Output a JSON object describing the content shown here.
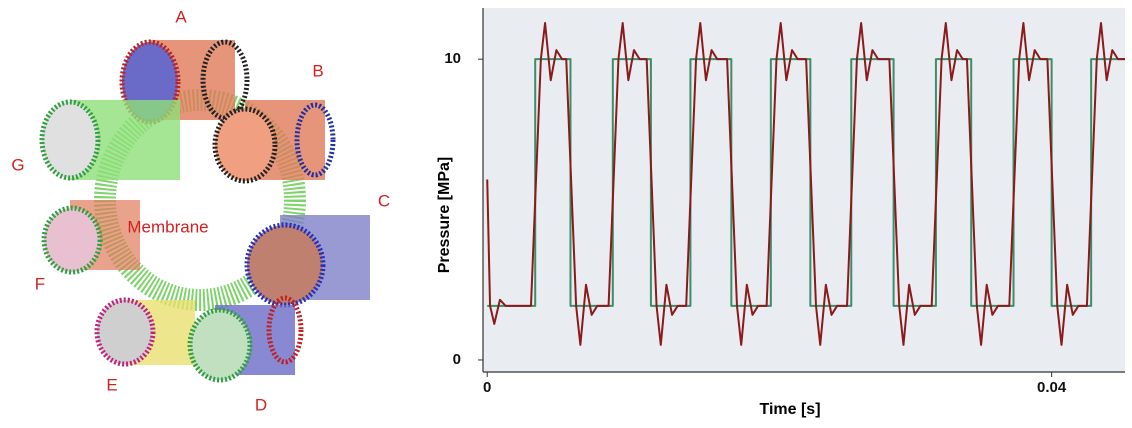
{
  "diagram": {
    "labels": [
      "A",
      "B",
      "C",
      "D",
      "E",
      "F",
      "G"
    ],
    "center_label": "Membrane"
  },
  "chart_data": {
    "type": "line",
    "x_label": "Time [s]",
    "y_label": "Pressure [MPa]",
    "xlim": [
      -0.0003,
      0.0452
    ],
    "xticks": [
      0,
      0.04
    ],
    "ylim": [
      -0.4,
      11.7
    ],
    "yticks": [
      0,
      10
    ],
    "series": [
      {
        "color": "#3a8f6a",
        "x": [
          0,
          0.0034,
          0.0034,
          0.0059,
          0.0059,
          0.0089,
          0.0089,
          0.0116,
          0.0116,
          0.0144,
          0.0144,
          0.0173,
          0.0173,
          0.0201,
          0.0201,
          0.0229,
          0.0229,
          0.0258,
          0.0258,
          0.0288,
          0.0288,
          0.0318,
          0.0318,
          0.0343,
          0.0343,
          0.0373,
          0.0373,
          0.04,
          0.04,
          0.0428,
          0.0428,
          0.0452
        ],
        "values": [
          1.8,
          1.8,
          10,
          10,
          1.8,
          1.8,
          10,
          10,
          1.8,
          1.8,
          10,
          10,
          1.8,
          1.8,
          10,
          10,
          1.8,
          1.8,
          10,
          10,
          1.8,
          1.8,
          10,
          10,
          1.8,
          1.8,
          10,
          10,
          1.8,
          1.8,
          10,
          10
        ]
      },
      {
        "color": "#8b1a1a",
        "x": [
          0,
          0.0002,
          0.0005,
          0.0009,
          0.0013,
          0.0031,
          0.0038,
          0.0041,
          0.0045,
          0.0049,
          0.0053,
          0.0056,
          0.0063,
          0.0066,
          0.007,
          0.0074,
          0.0078,
          0.0086,
          0.0093,
          0.0096,
          0.01,
          0.0104,
          0.0108,
          0.0113,
          0.012,
          0.0123,
          0.0127,
          0.0131,
          0.0135,
          0.0141,
          0.0148,
          0.0151,
          0.0155,
          0.0159,
          0.0163,
          0.017,
          0.0177,
          0.018,
          0.0184,
          0.0188,
          0.0192,
          0.0198,
          0.0205,
          0.0208,
          0.0212,
          0.0216,
          0.022,
          0.0226,
          0.0233,
          0.0236,
          0.024,
          0.0244,
          0.0248,
          0.0255,
          0.0262,
          0.0265,
          0.0269,
          0.0273,
          0.0277,
          0.0285,
          0.0292,
          0.0295,
          0.0299,
          0.0303,
          0.0307,
          0.0315,
          0.0322,
          0.0325,
          0.0329,
          0.0333,
          0.0337,
          0.034,
          0.0347,
          0.035,
          0.0354,
          0.0358,
          0.0362,
          0.037,
          0.0377,
          0.038,
          0.0384,
          0.0388,
          0.0392,
          0.0397,
          0.0404,
          0.0407,
          0.0411,
          0.0415,
          0.0419,
          0.0425,
          0.0432,
          0.0435,
          0.0439,
          0.0443,
          0.0447,
          0.0452
        ],
        "values": [
          6,
          1.8,
          1.2,
          2.0,
          1.8,
          1.8,
          10,
          11.2,
          9.3,
          10.3,
          10,
          10,
          1.8,
          0.5,
          2.5,
          1.5,
          1.8,
          1.8,
          10,
          11.2,
          9.3,
          10.3,
          10,
          10,
          1.8,
          0.5,
          2.5,
          1.5,
          1.8,
          1.8,
          10,
          11.2,
          9.3,
          10.3,
          10,
          10,
          1.8,
          0.5,
          2.5,
          1.5,
          1.8,
          1.8,
          10,
          11.2,
          9.3,
          10.3,
          10,
          10,
          1.8,
          0.5,
          2.5,
          1.5,
          1.8,
          1.8,
          10,
          11.2,
          9.3,
          10.3,
          10,
          10,
          1.8,
          0.5,
          2.5,
          1.5,
          1.8,
          1.8,
          10,
          11.2,
          9.3,
          10.3,
          10,
          10,
          1.8,
          0.5,
          2.5,
          1.5,
          1.8,
          1.8,
          10,
          11.2,
          9.3,
          10.3,
          10,
          10,
          1.8,
          0.5,
          2.5,
          1.5,
          1.8,
          1.8,
          10,
          11.2,
          9.3,
          10.3,
          10,
          10
        ]
      }
    ]
  }
}
